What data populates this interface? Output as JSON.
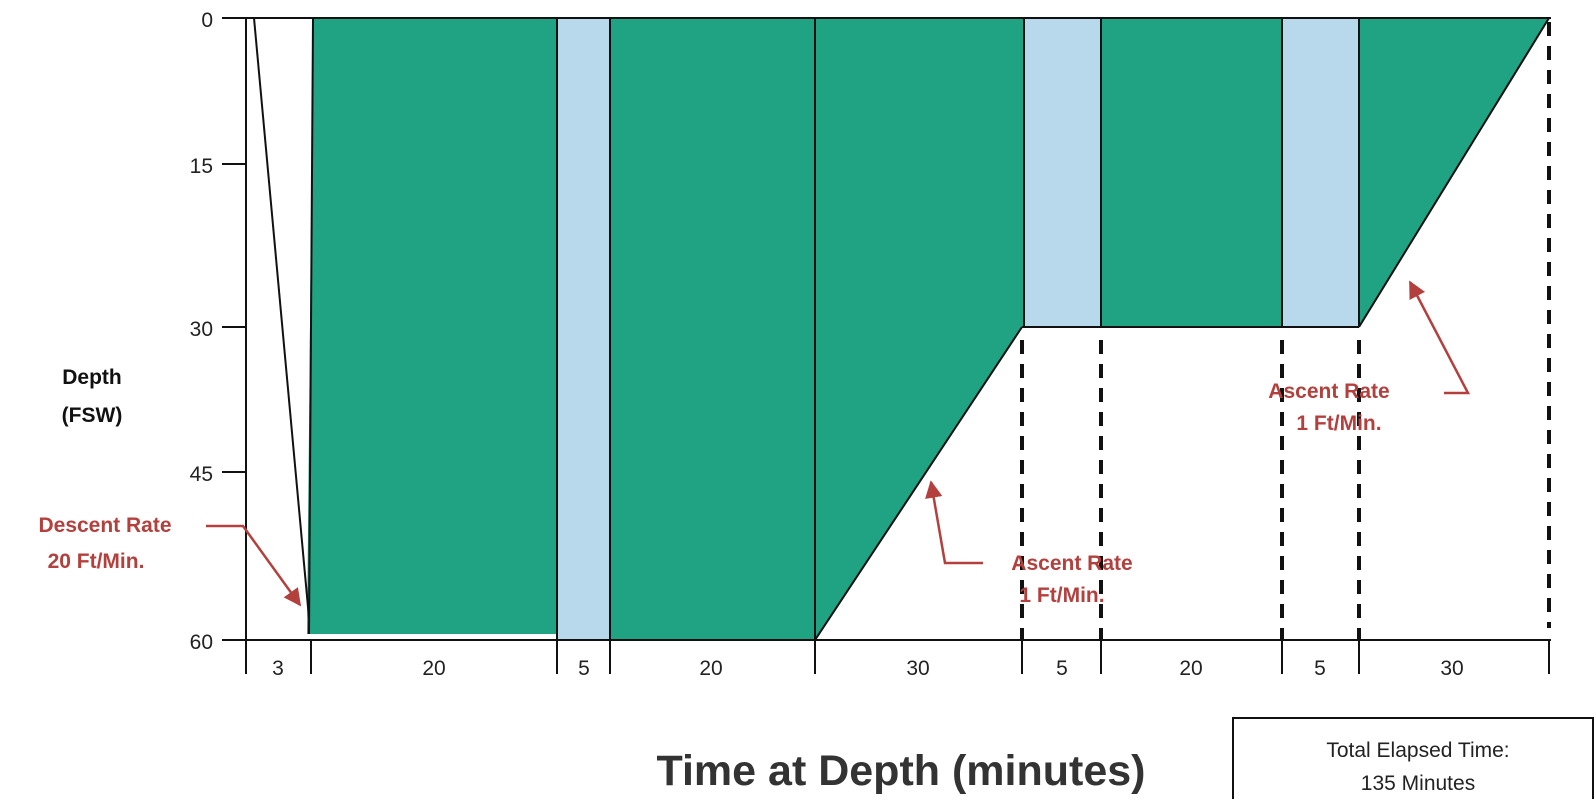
{
  "diagram": {
    "y_axis": {
      "label_line1": "Depth",
      "label_line2": "(FSW)",
      "ticks": [
        "0",
        "15",
        "30",
        "45",
        "60"
      ]
    },
    "x_axis": {
      "title": "Time at Depth (minutes)",
      "segments": [
        "3",
        "20",
        "5",
        "20",
        "30",
        "5",
        "20",
        "5",
        "30"
      ]
    },
    "annotations": {
      "descent_line1": "Descent Rate",
      "descent_line2": "20 Ft/Min.",
      "ascent1_line1": "Ascent Rate",
      "ascent1_line2": "1 Ft/Min.",
      "ascent2_line1": "Ascent Rate",
      "ascent2_line2": "1 Ft/Min."
    },
    "total_box": {
      "line1": "Total Elapsed Time:",
      "line2": "135 Minutes"
    },
    "colors": {
      "oxygen": "#1fa383",
      "air_break": "#b8d9ec",
      "annotation": "#b3403d",
      "axis": "#111111"
    }
  }
}
